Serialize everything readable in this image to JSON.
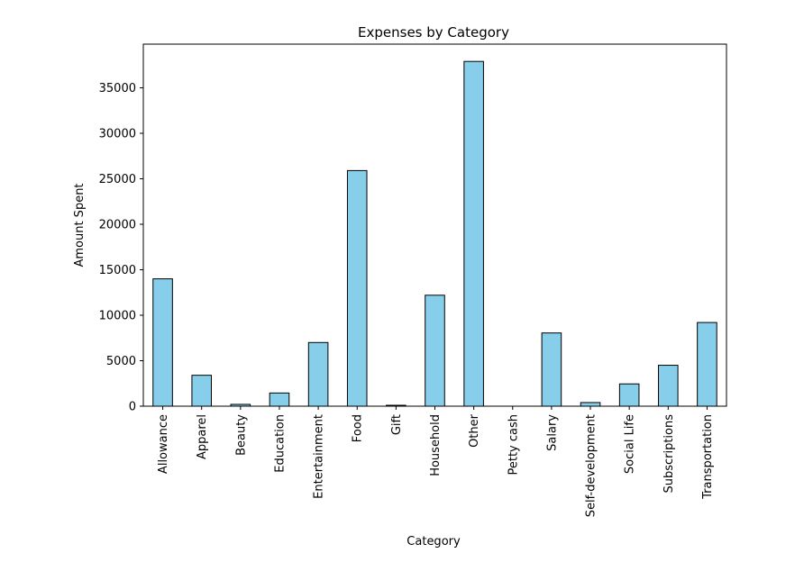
{
  "chart_data": {
    "type": "bar",
    "title": "Expenses by Category",
    "xlabel": "Category",
    "ylabel": "Amount Spent",
    "categories": [
      "Allowance",
      "Apparel",
      "Beauty",
      "Education",
      "Entertainment",
      "Food",
      "Gift",
      "Household",
      "Other",
      "Petty cash",
      "Salary",
      "Self-development",
      "Social Life",
      "Subscriptions",
      "Transportation"
    ],
    "values": [
      14000,
      3400,
      200,
      1450,
      7000,
      25900,
      100,
      12200,
      37900,
      0,
      8050,
      400,
      2450,
      4500,
      9200
    ],
    "ylim": [
      0,
      39800
    ],
    "yticks": [
      0,
      5000,
      10000,
      15000,
      20000,
      25000,
      30000,
      35000
    ],
    "grid": false,
    "bar_color": "#87CEEB",
    "edge_color": "#000000"
  }
}
